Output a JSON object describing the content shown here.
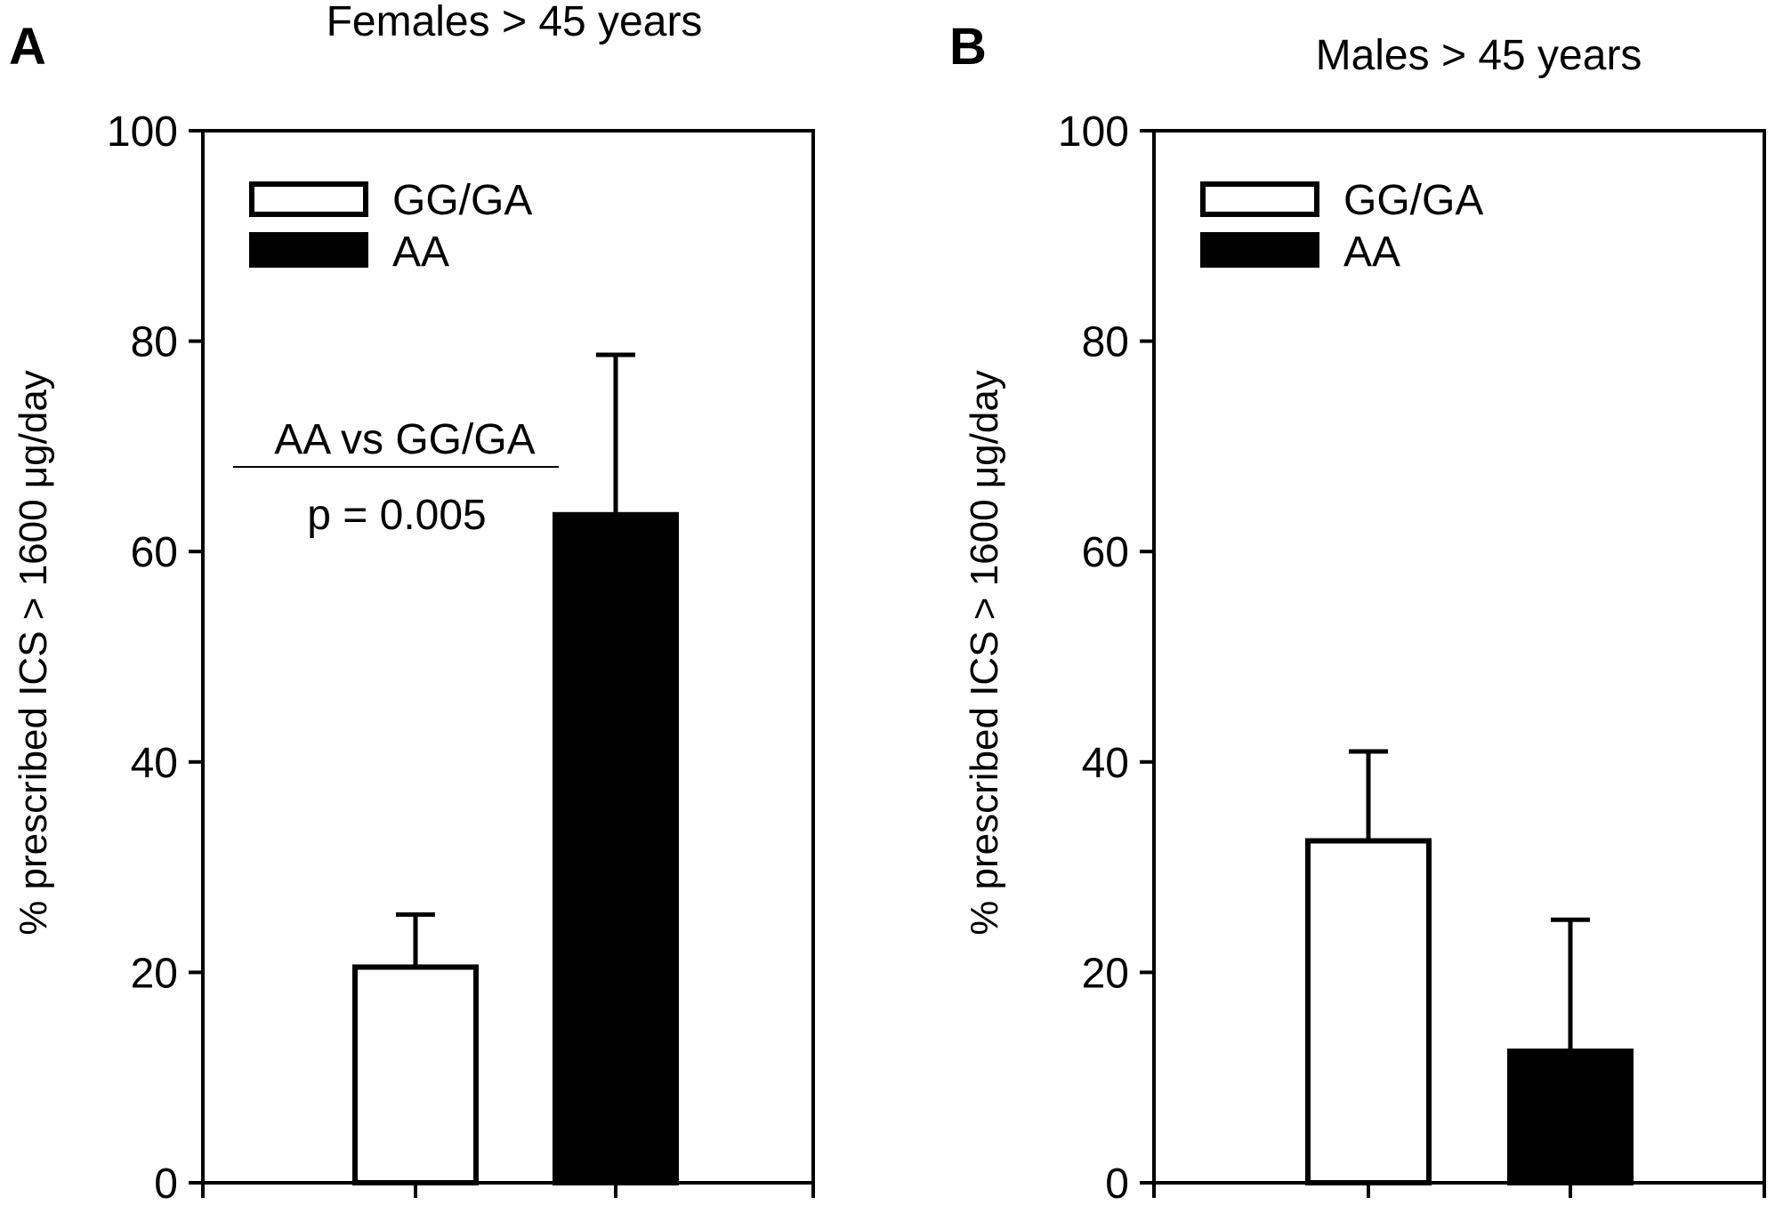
{
  "chart_data": [
    {
      "type": "bar",
      "panel": "A",
      "title": "Females > 45 years",
      "xlabel": "",
      "ylabel": "% prescribed ICS > 1600 μg/day",
      "ylim": [
        0,
        100
      ],
      "yticks": [
        0,
        20,
        40,
        60,
        80,
        100
      ],
      "yticks_labels": [
        "0",
        "20",
        "40",
        "60",
        "80",
        "100"
      ],
      "categories": [
        "GG/GA",
        "AA"
      ],
      "values": [
        20.5,
        63.5
      ],
      "errors": [
        5,
        15.2
      ],
      "fills": [
        "#ffffff",
        "#000000"
      ],
      "legend": [
        {
          "label": "GG/GA",
          "fill": "#ffffff"
        },
        {
          "label": "AA",
          "fill": "#000000"
        }
      ],
      "legend_position": "top-left",
      "annotation": {
        "line1": "AA vs GG/GA",
        "line2": "p = 0.005"
      }
    },
    {
      "type": "bar",
      "panel": "B",
      "title": "Males > 45 years",
      "xlabel": "",
      "ylabel": "% prescribed ICS > 1600 μg/day",
      "ylim": [
        0,
        100
      ],
      "yticks": [
        0,
        20,
        40,
        60,
        80,
        100
      ],
      "yticks_labels": [
        "0",
        "20",
        "40",
        "60",
        "80",
        "100"
      ],
      "categories": [
        "GG/GA",
        "AA"
      ],
      "values": [
        32.5,
        12.5
      ],
      "errors": [
        8.5,
        12.5
      ],
      "fills": [
        "#ffffff",
        "#000000"
      ],
      "legend": [
        {
          "label": "GG/GA",
          "fill": "#ffffff"
        },
        {
          "label": "AA",
          "fill": "#000000"
        }
      ],
      "legend_position": "top-left"
    }
  ]
}
